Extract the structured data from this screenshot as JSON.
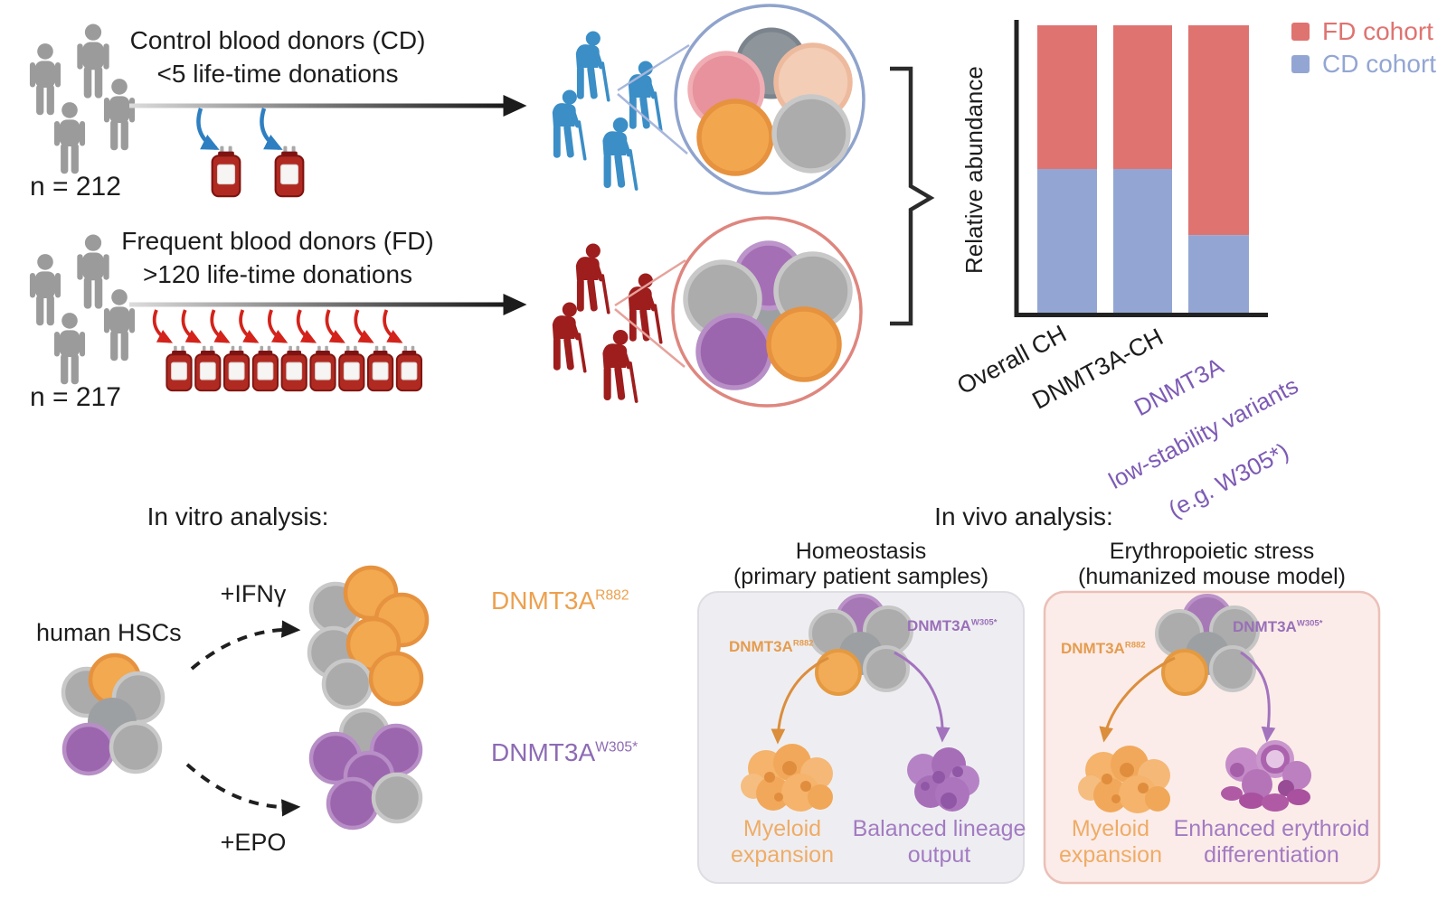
{
  "cohorts": {
    "cd": {
      "title_line1": "Control blood donors (CD)",
      "title_line2": "<5 life-time donations",
      "n_label": "n = 212",
      "bag_count": 2
    },
    "fd": {
      "title_line1": "Frequent blood donors (FD)",
      "title_line2": ">120 life-time donations",
      "n_label": "n = 217",
      "bag_count": 9
    }
  },
  "chart": {
    "ylabel": "Relative abundance",
    "tick1": "Overall CH",
    "tick2": "DNMT3A-CH",
    "tick3_line1": "DNMT3A",
    "tick3_line2": "low-stability variants",
    "tick3_line3": "(e.g. W305*)",
    "legend": [
      {
        "label": "FD cohort",
        "color": "#DF7370"
      },
      {
        "label": "CD cohort",
        "color": "#93A6D3"
      }
    ]
  },
  "chart_data": {
    "type": "bar",
    "stacked": true,
    "categories": [
      "Overall CH",
      "DNMT3A-CH",
      "DNMT3A low-stability variants (e.g. W305*)"
    ],
    "series": [
      {
        "name": "FD cohort",
        "color": "#DF7370",
        "values": [
          50,
          50,
          73
        ]
      },
      {
        "name": "CD cohort",
        "color": "#93A6D3",
        "values": [
          50,
          50,
          27
        ]
      }
    ],
    "ylabel": "Relative abundance",
    "y_units": "percent of stacked bar",
    "ylim": [
      0,
      100
    ],
    "grid": false,
    "legend_position": "top-right"
  },
  "in_vitro": {
    "title": "In vitro analysis:",
    "hsc_label": "human HSCs",
    "ifn_label": "+IFNγ",
    "epo_label": "+EPO",
    "dnmt3a": "DNMT3A",
    "r882_sup": "R882",
    "w305_sup": "W305*"
  },
  "in_vivo": {
    "title": "In vivo analysis:",
    "homeostasis": {
      "heading": "Homeostasis",
      "subheading": "(primary patient samples)",
      "left_outcome": "Myeloid expansion",
      "right_outcome": "Balanced lineage output"
    },
    "stress": {
      "heading": "Erythropoietic stress",
      "subheading": "(humanized mouse model)",
      "left_outcome": "Myeloid expansion",
      "right_outcome": "Enhanced erythroid differentiation"
    }
  },
  "icons": {
    "person-icon": "standing person pictogram",
    "person-cane-icon": "elderly person with walking cane pictogram",
    "blood-bag-icon": "blood donation bag",
    "magnifier-circle-icon": "zoom circle showing clonal cell composition",
    "brace-icon": "curly brace grouping cohorts into chart",
    "arrow-icon": "flow arrow",
    "dashed-arrow-icon": "dashed differentiation arrow"
  },
  "colors": {
    "person_gray": "#9B9B9B",
    "cd_person_blue": "#3B8EC6",
    "fd_person_red": "#9E1D1D",
    "fd_bar_red": "#DF7370",
    "cd_bar_blue": "#93A6D3",
    "orange_cell": "#F2A74E",
    "purple_cell": "#9C66AE",
    "homeostasis_panel_bg": "#EEEEF2",
    "stress_panel_bg": "#FBECE9"
  }
}
